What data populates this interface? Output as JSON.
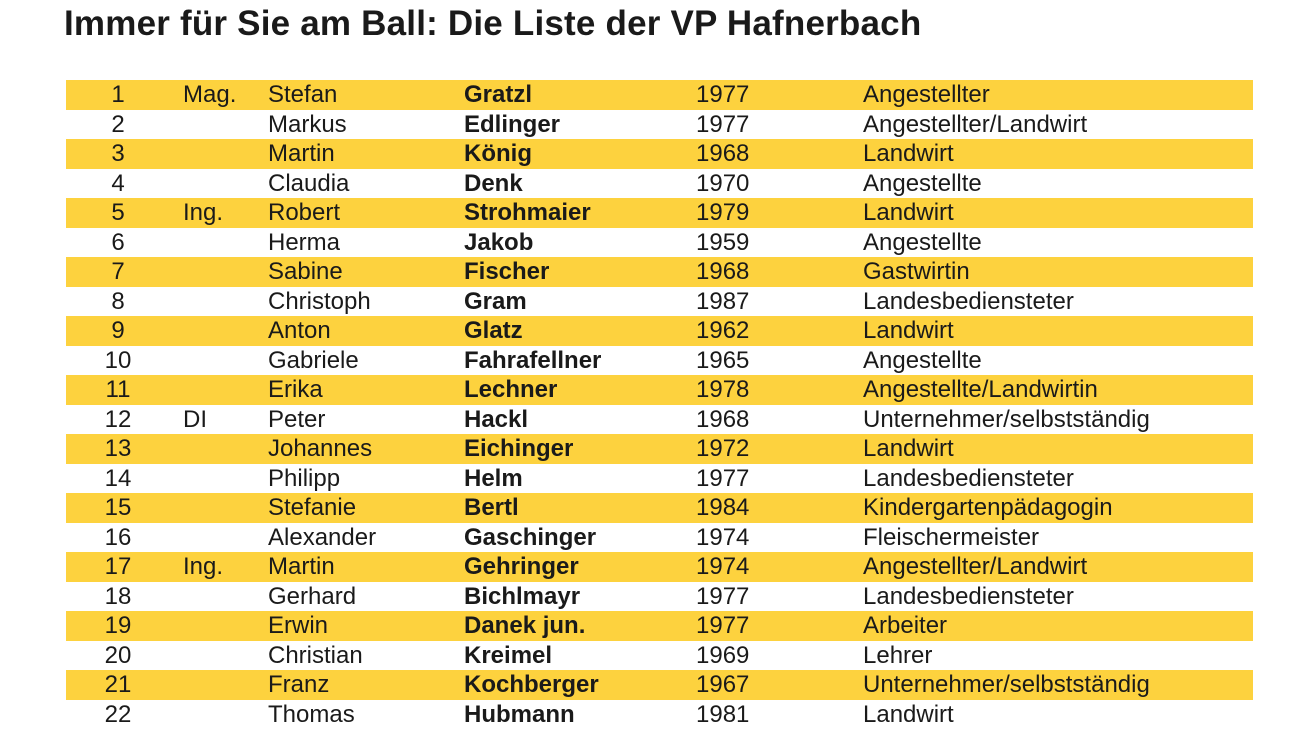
{
  "title": "Immer für Sie am Ball: Die Liste der VP Hafnerbach",
  "accent_color": "#fdd23e",
  "candidates": [
    {
      "num": "1",
      "title": "Mag.",
      "first": "Stefan",
      "last": "Gratzl",
      "year": "1977",
      "job": "Angestellter"
    },
    {
      "num": "2",
      "title": "",
      "first": "Markus",
      "last": "Edlinger",
      "year": "1977",
      "job": "Angestellter/Landwirt"
    },
    {
      "num": "3",
      "title": "",
      "first": "Martin",
      "last": "König",
      "year": "1968",
      "job": "Landwirt"
    },
    {
      "num": "4",
      "title": "",
      "first": "Claudia",
      "last": "Denk",
      "year": "1970",
      "job": "Angestellte"
    },
    {
      "num": "5",
      "title": "Ing.",
      "first": "Robert",
      "last": "Strohmaier",
      "year": "1979",
      "job": "Landwirt"
    },
    {
      "num": "6",
      "title": "",
      "first": "Herma",
      "last": "Jakob",
      "year": "1959",
      "job": "Angestellte"
    },
    {
      "num": "7",
      "title": "",
      "first": "Sabine",
      "last": "Fischer",
      "year": "1968",
      "job": "Gastwirtin"
    },
    {
      "num": "8",
      "title": "",
      "first": "Christoph",
      "last": "Gram",
      "year": "1987",
      "job": "Landesbediensteter"
    },
    {
      "num": "9",
      "title": "",
      "first": "Anton",
      "last": "Glatz",
      "year": "1962",
      "job": "Landwirt"
    },
    {
      "num": "10",
      "title": "",
      "first": "Gabriele",
      "last": "Fahrafellner",
      "year": "1965",
      "job": "Angestellte"
    },
    {
      "num": "11",
      "title": "",
      "first": "Erika",
      "last": "Lechner",
      "year": "1978",
      "job": "Angestellte/Landwirtin"
    },
    {
      "num": "12",
      "title": "DI",
      "first": "Peter",
      "last": "Hackl",
      "year": "1968",
      "job": "Unternehmer/selbstständig"
    },
    {
      "num": "13",
      "title": "",
      "first": "Johannes",
      "last": "Eichinger",
      "year": "1972",
      "job": "Landwirt"
    },
    {
      "num": "14",
      "title": "",
      "first": "Philipp",
      "last": "Helm",
      "year": "1977",
      "job": "Landesbediensteter"
    },
    {
      "num": "15",
      "title": "",
      "first": "Stefanie",
      "last": "Bertl",
      "year": "1984",
      "job": "Kindergartenpädagogin"
    },
    {
      "num": "16",
      "title": "",
      "first": "Alexander",
      "last": "Gaschinger",
      "year": "1974",
      "job": "Fleischermeister"
    },
    {
      "num": "17",
      "title": "Ing.",
      "first": "Martin",
      "last": "Gehringer",
      "year": "1974",
      "job": "Angestellter/Landwirt"
    },
    {
      "num": "18",
      "title": "",
      "first": "Gerhard",
      "last": "Bichlmayr",
      "year": "1977",
      "job": "Landesbediensteter"
    },
    {
      "num": "19",
      "title": "",
      "first": "Erwin",
      "last": "Danek jun.",
      "year": "1977",
      "job": "Arbeiter"
    },
    {
      "num": "20",
      "title": "",
      "first": "Christian",
      "last": "Kreimel",
      "year": "1969",
      "job": "Lehrer"
    },
    {
      "num": "21",
      "title": "",
      "first": "Franz",
      "last": "Kochberger",
      "year": "1967",
      "job": "Unternehmer/selbstständig"
    },
    {
      "num": "22",
      "title": "",
      "first": "Thomas",
      "last": "Hubmann",
      "year": "1981",
      "job": "Landwirt"
    }
  ]
}
